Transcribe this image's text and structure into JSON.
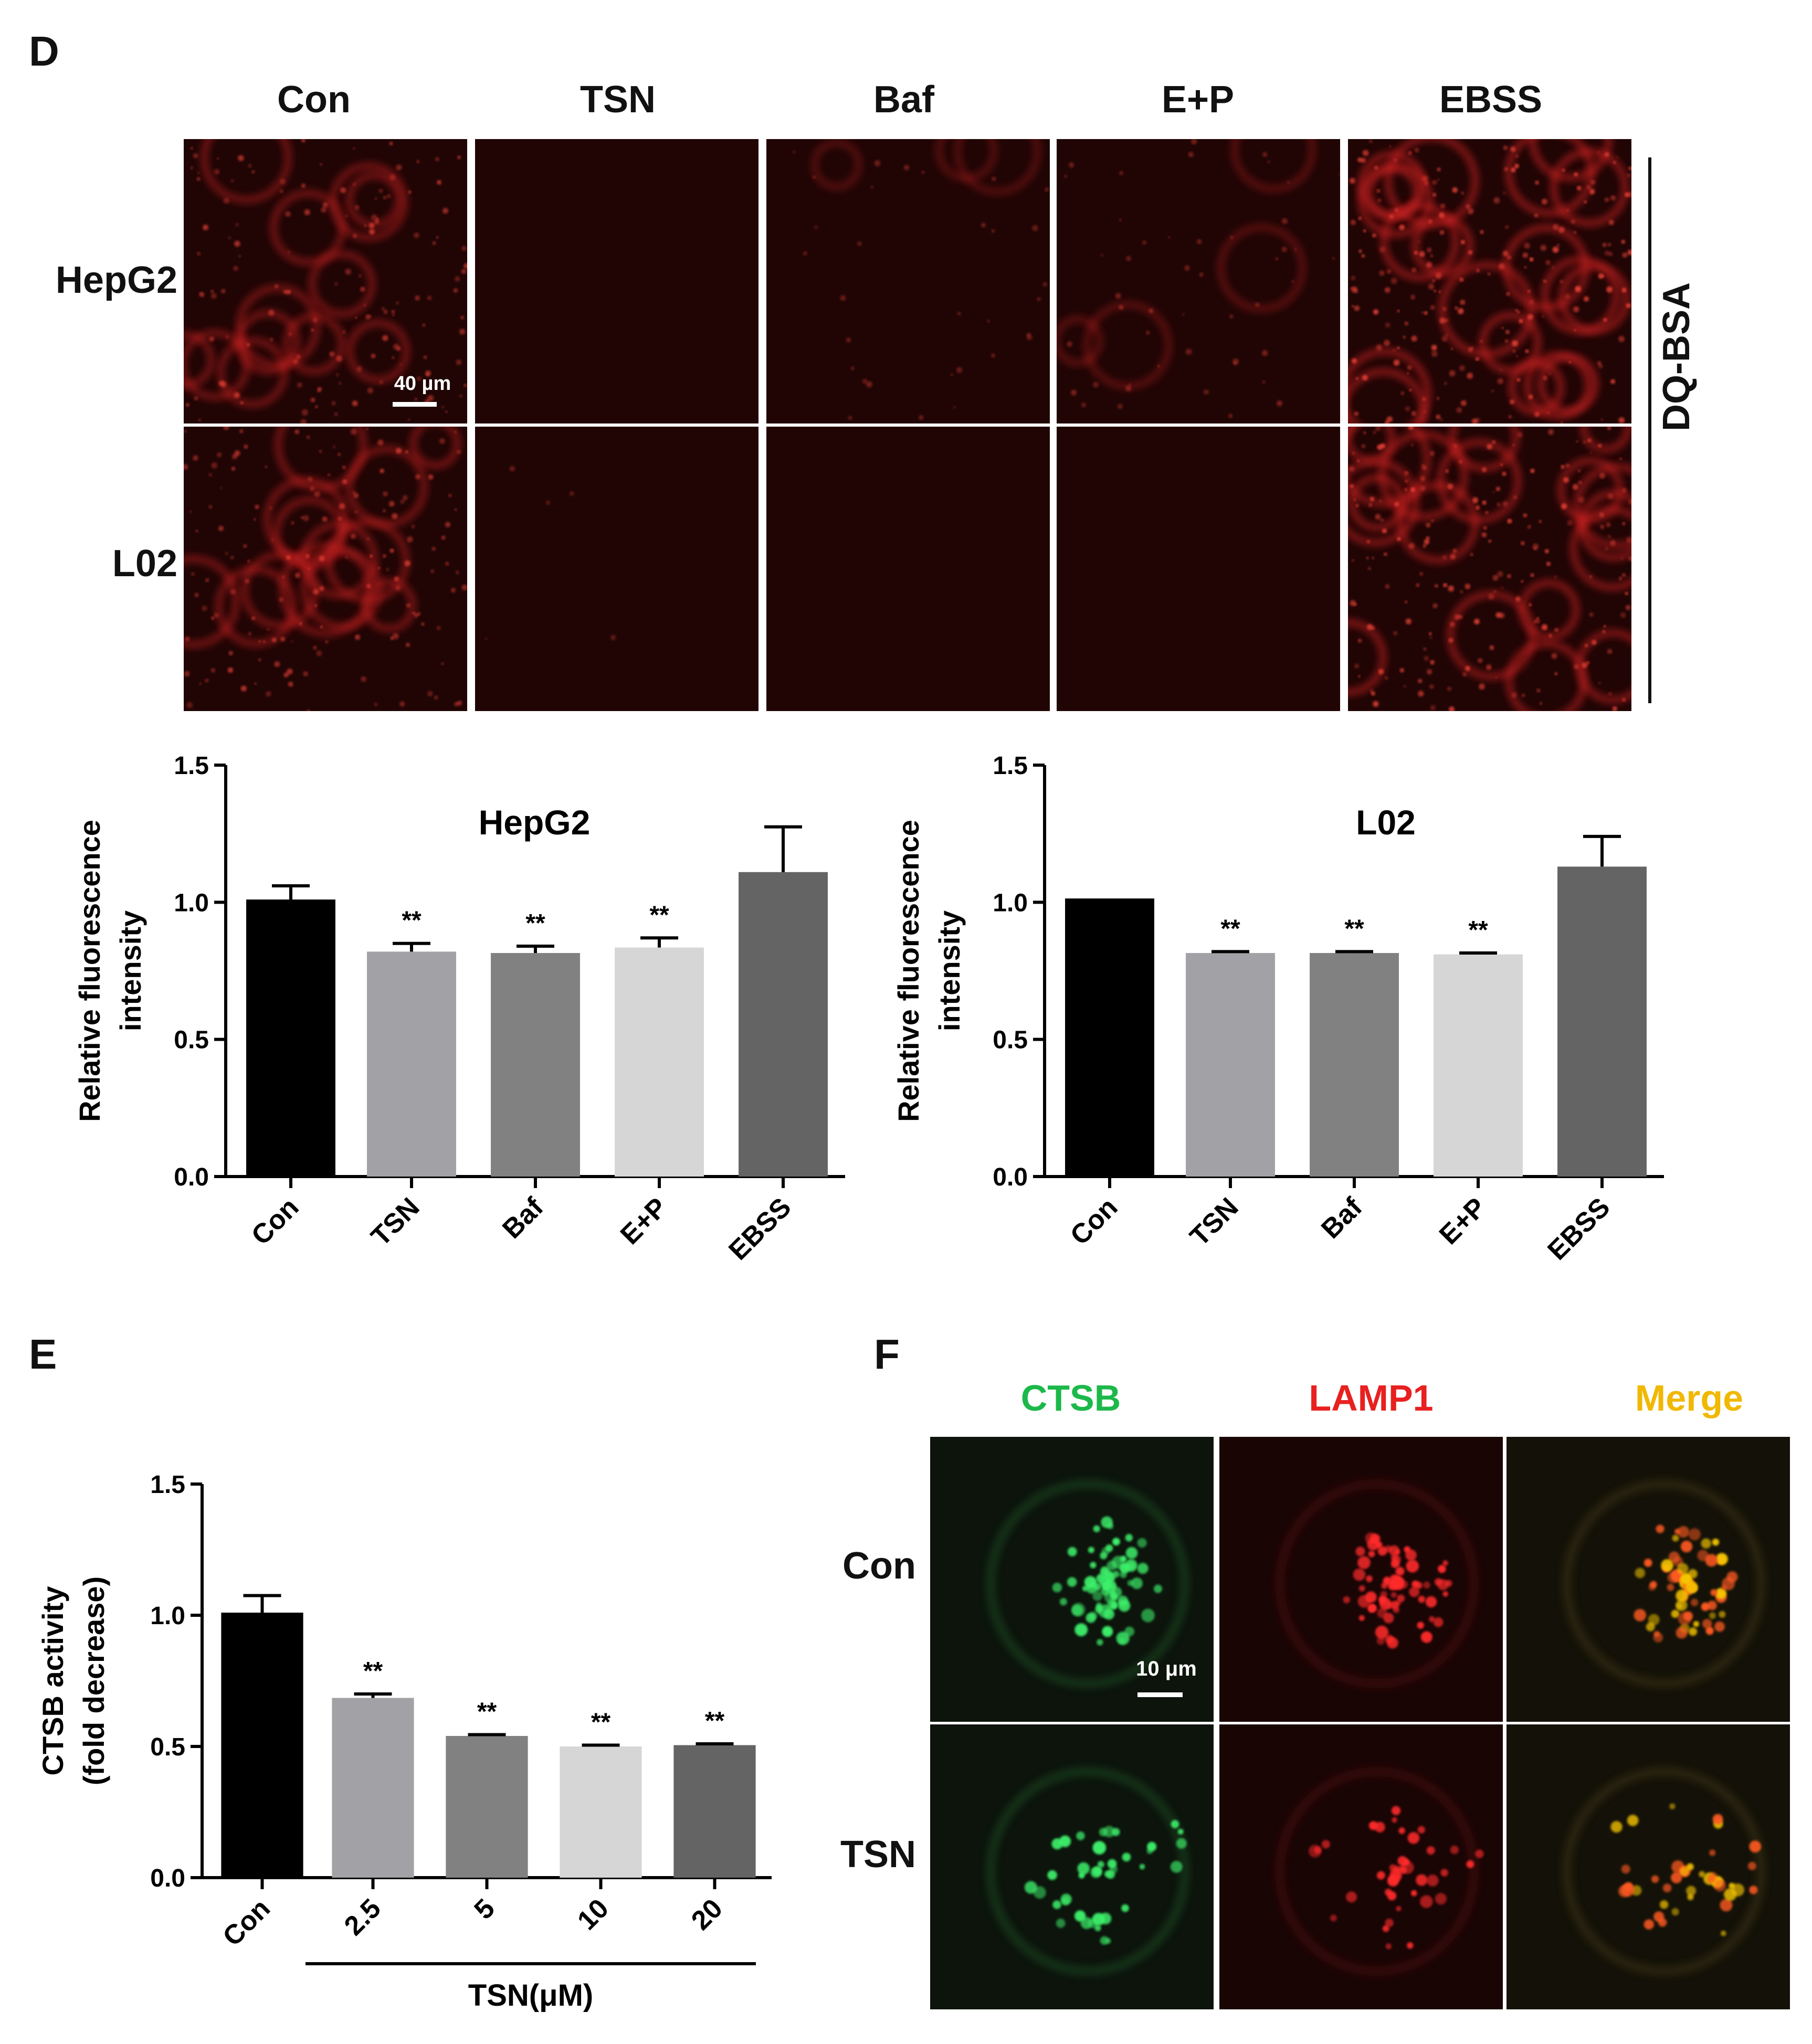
{
  "panels": {
    "D": {
      "letter": "D",
      "columns": [
        "Con",
        "TSN",
        "Baf",
        "E+P",
        "EBSS"
      ],
      "rows": [
        "HepG2",
        "L02"
      ],
      "side_label": "DQ-BSA",
      "scale_bar": "40 µm",
      "cell_colors": {
        "bright": "#d02020",
        "dim": "#3a0808",
        "bg": "#210505"
      },
      "brightness": [
        [
          0.55,
          0.0,
          0.12,
          0.18,
          0.85
        ],
        [
          0.6,
          0.02,
          0.0,
          0.0,
          0.8
        ]
      ]
    },
    "E": {
      "letter": "E",
      "group_label": "TSN(μM)"
    },
    "F": {
      "letter": "F",
      "columns": [
        "CTSB",
        "LAMP1",
        "Merge"
      ],
      "column_colors": [
        "#1cb84a",
        "#e82020",
        "#f0b800"
      ],
      "rows": [
        "Con",
        "TSN"
      ],
      "scale_bar": "10 μm"
    }
  },
  "chart_data": [
    {
      "id": "D-HepG2",
      "type": "bar",
      "title": "HepG2",
      "ylabel": "Relative fluorescence intensity",
      "ylabel_lines": [
        "Relative fluorescence",
        "intensity"
      ],
      "xlabel": "",
      "categories": [
        "Con",
        "TSN",
        "Baf",
        "E+P",
        "EBSS"
      ],
      "values": [
        1.01,
        0.82,
        0.815,
        0.835,
        1.11
      ],
      "errors": [
        0.05,
        0.03,
        0.025,
        0.035,
        0.165
      ],
      "annotations": [
        "",
        "**",
        "**",
        "**",
        ""
      ],
      "colors": [
        "#000000",
        "#a2a2a6",
        "#818181",
        "#d6d6d6",
        "#646464"
      ],
      "ylim": [
        0,
        1.5
      ],
      "yticks": [
        "0.0",
        "0.5",
        "1.0",
        "1.5"
      ]
    },
    {
      "id": "D-L02",
      "type": "bar",
      "title": "L02",
      "ylabel": "Relative fluorescence intensity",
      "ylabel_lines": [
        "Relative fluorescence",
        "intensity"
      ],
      "xlabel": "",
      "categories": [
        "Con",
        "TSN",
        "Baf",
        "E+P",
        "EBSS"
      ],
      "values": [
        1.01,
        0.815,
        0.815,
        0.81,
        1.13
      ],
      "errors": [
        0.0,
        0.005,
        0.005,
        0.005,
        0.11
      ],
      "annotations": [
        "",
        "**",
        "**",
        "**",
        ""
      ],
      "colors": [
        "#000000",
        "#a2a2a6",
        "#818181",
        "#d6d6d6",
        "#646464"
      ],
      "ylim": [
        0,
        1.5
      ],
      "yticks": [
        "0.0",
        "0.5",
        "1.0",
        "1.5"
      ]
    },
    {
      "id": "E-CTSB",
      "type": "bar",
      "title": "",
      "ylabel": "CTSB activity (fold decrease)",
      "ylabel_lines": [
        "CTSB activity",
        "(fold decrease)"
      ],
      "xlabel": "TSN(μM)",
      "categories": [
        "Con",
        "2.5",
        "5",
        "10",
        "20"
      ],
      "values": [
        1.01,
        0.685,
        0.54,
        0.5,
        0.505
      ],
      "errors": [
        0.065,
        0.015,
        0.005,
        0.005,
        0.005
      ],
      "annotations": [
        "",
        "**",
        "**",
        "**",
        "**"
      ],
      "colors": [
        "#000000",
        "#a2a2a6",
        "#818181",
        "#d6d6d6",
        "#646464"
      ],
      "ylim": [
        0,
        1.5
      ],
      "yticks": [
        "0.0",
        "0.5",
        "1.0",
        "1.5"
      ]
    }
  ]
}
